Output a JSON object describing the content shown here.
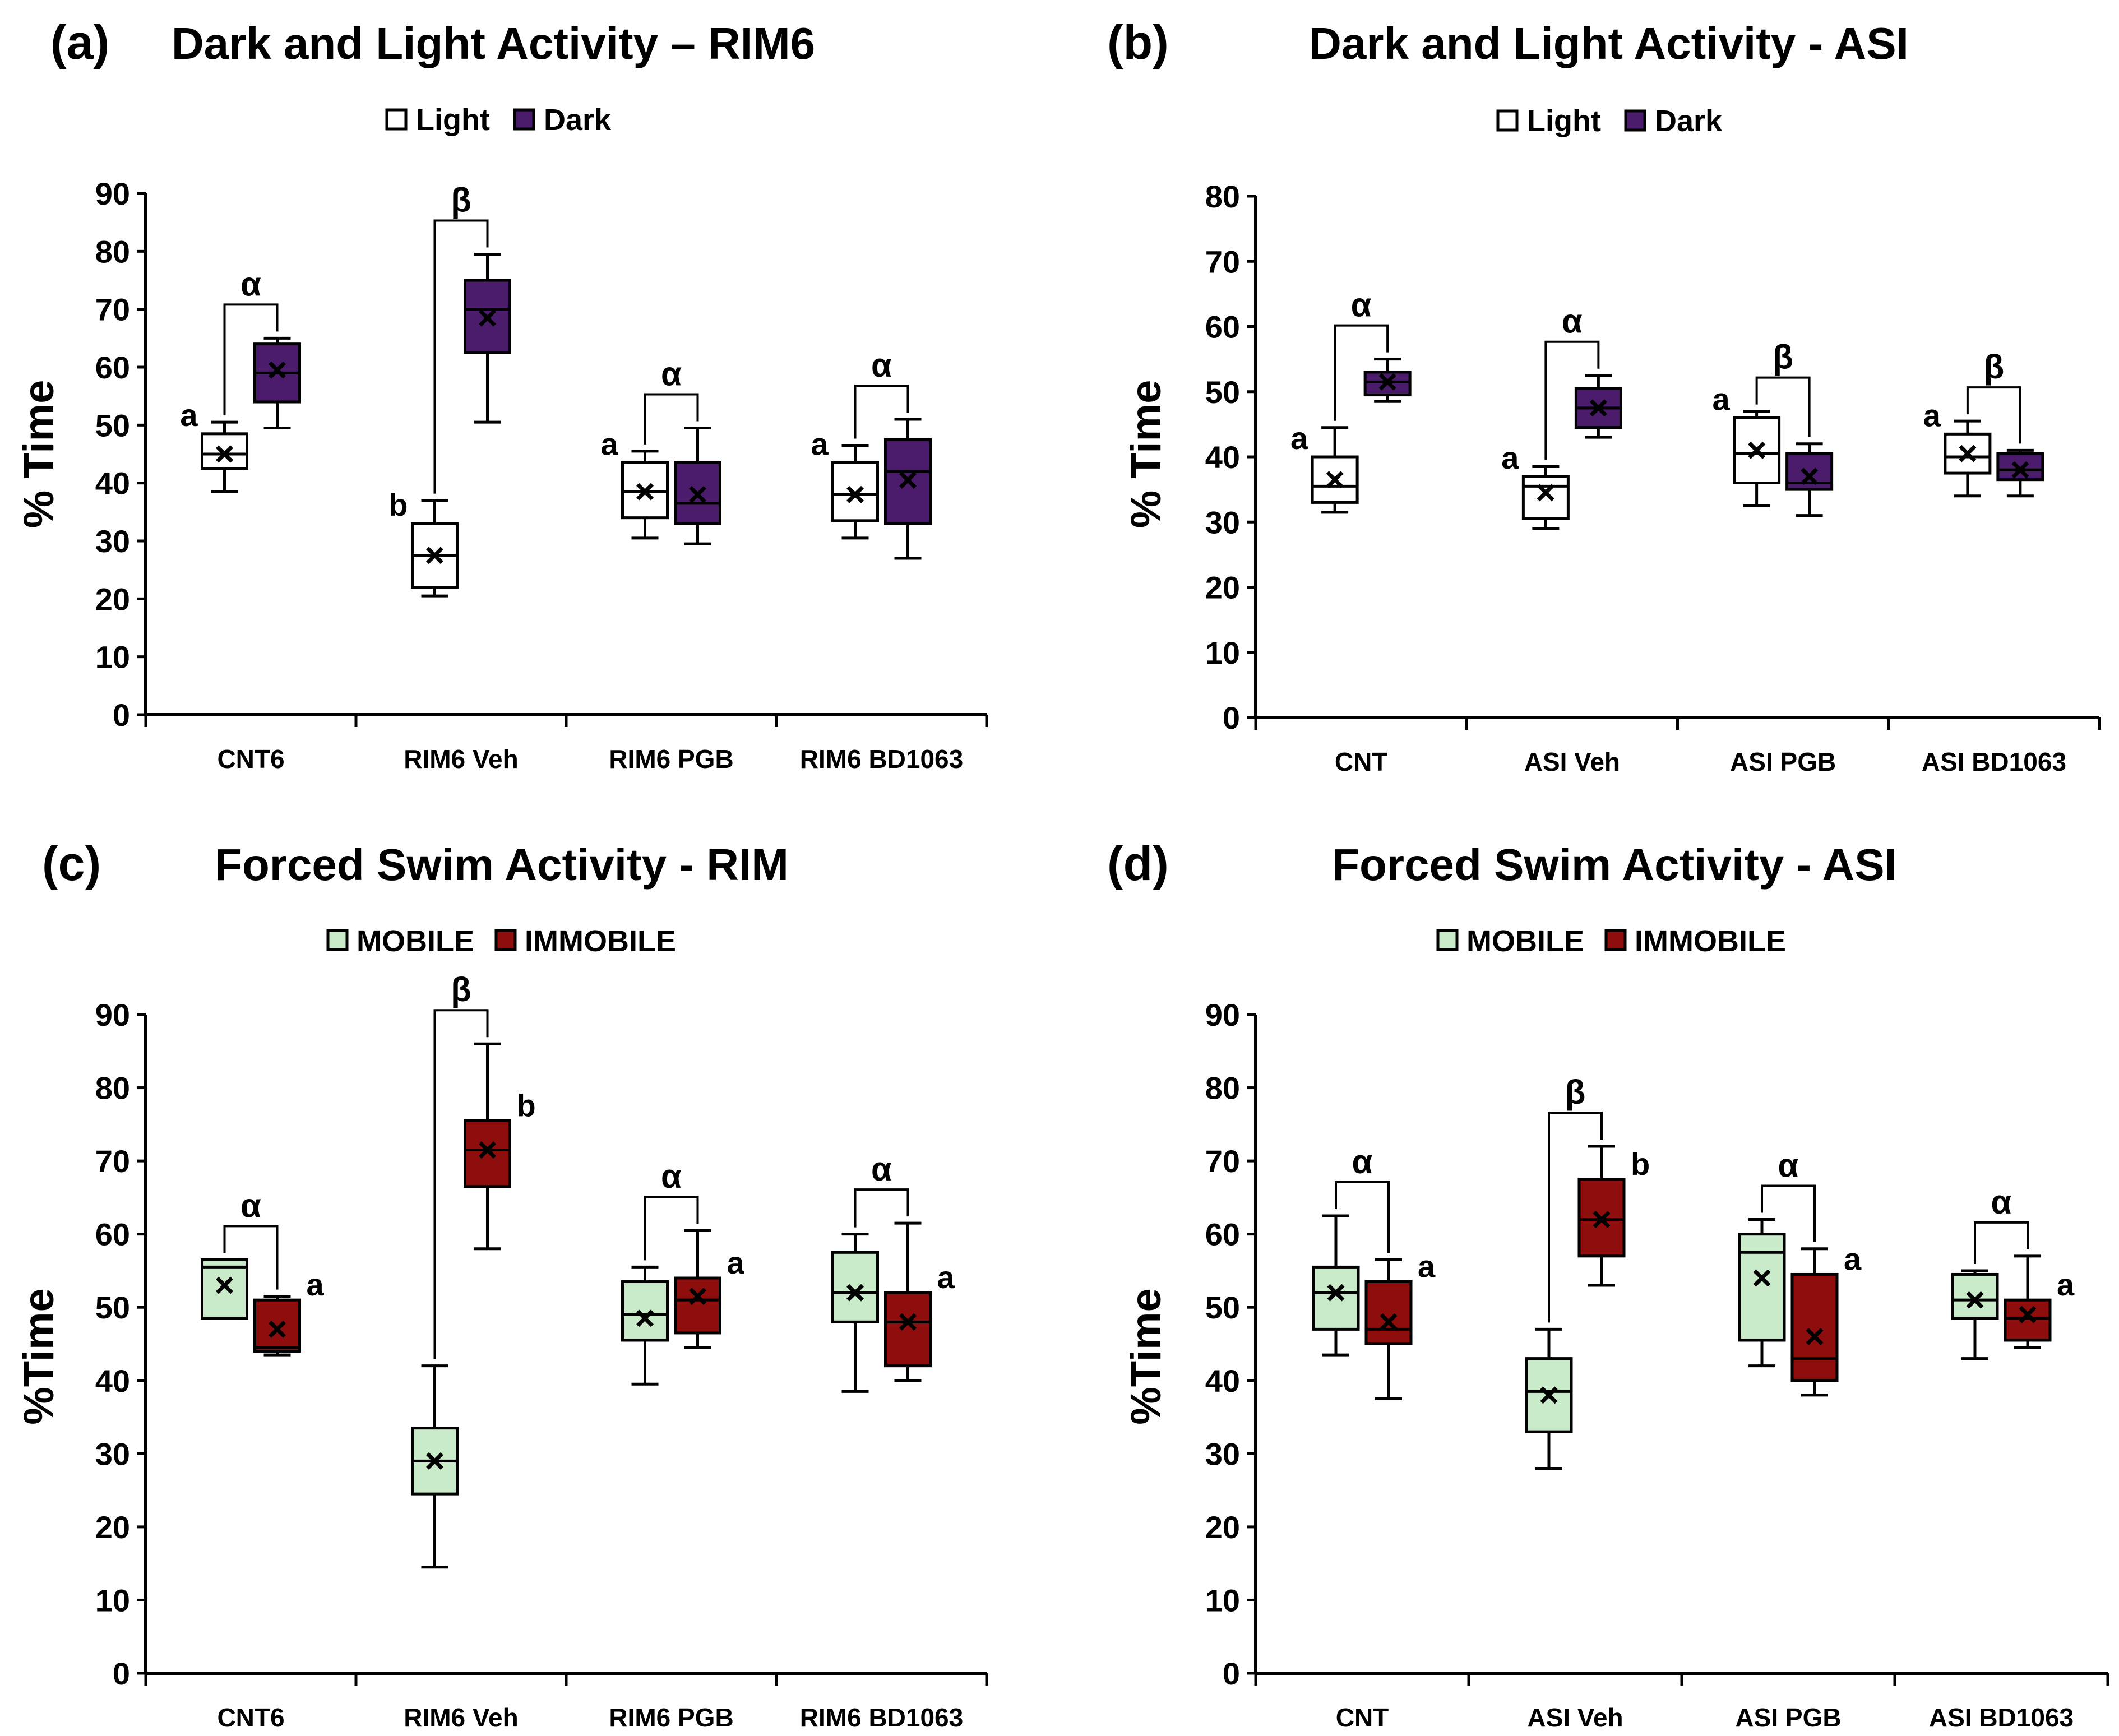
{
  "figure": {
    "panels": [
      {
        "label": "(a)",
        "title": "Dark and Light Activity – RIM6"
      },
      {
        "label": "(b)",
        "title": "Dark and Light Activity - ASI"
      },
      {
        "label": "(c)",
        "title": "Forced Swim Activity - RIM"
      },
      {
        "label": "(d)",
        "title": "Forced Swim Activity - ASI"
      }
    ]
  },
  "colors": {
    "light_fill": "#ffffff",
    "dark_fill": "#4b1c6b",
    "mobile_fill": "#c9ebc9",
    "immobile_fill": "#8e0e0e",
    "stroke": "#000000"
  },
  "chart_data": [
    {
      "type": "box",
      "label": "(a)",
      "title": "Dark and Light Activity – RIM6",
      "ylabel": "% Time",
      "ylim": [
        0,
        90
      ],
      "yticks": [
        0,
        10,
        20,
        30,
        40,
        50,
        60,
        70,
        80,
        90
      ],
      "legend": [
        "Light",
        "Dark"
      ],
      "legend_position": "top-center",
      "categories": [
        "CNT6",
        "RIM6 Veh",
        "RIM6 PGB",
        "RIM6 BD1063"
      ],
      "series": [
        {
          "name": "Light",
          "fill": "#ffffff",
          "boxes": [
            {
              "min": 38.5,
              "q1": 42.5,
              "median": 45.0,
              "q3": 48.5,
              "max": 50.5,
              "mean": 45.0
            },
            {
              "min": 20.5,
              "q1": 22.0,
              "median": 27.5,
              "q3": 33.0,
              "max": 37.0,
              "mean": 27.5
            },
            {
              "min": 30.5,
              "q1": 34.0,
              "median": 38.5,
              "q3": 43.5,
              "max": 45.5,
              "mean": 38.5
            },
            {
              "min": 30.5,
              "q1": 33.5,
              "median": 38.0,
              "q3": 43.5,
              "max": 46.5,
              "mean": 38.0
            }
          ]
        },
        {
          "name": "Dark",
          "fill": "#4b1c6b",
          "boxes": [
            {
              "min": 49.5,
              "q1": 54.0,
              "median": 59.0,
              "q3": 64.0,
              "max": 65.0,
              "mean": 59.5
            },
            {
              "min": 50.5,
              "q1": 62.5,
              "median": 70.0,
              "q3": 75.0,
              "max": 79.5,
              "mean": 68.5
            },
            {
              "min": 29.5,
              "q1": 33.0,
              "median": 36.5,
              "q3": 43.5,
              "max": 49.5,
              "mean": 38.0
            },
            {
              "min": 27.0,
              "q1": 33.0,
              "median": 42.0,
              "q3": 47.5,
              "max": 51.0,
              "mean": 40.5
            }
          ]
        }
      ],
      "letters": [
        "a",
        "b",
        "a",
        "a"
      ],
      "brackets": [
        "α",
        "β",
        "α",
        "α"
      ]
    },
    {
      "type": "box",
      "label": "(b)",
      "title": "Dark and Light Activity - ASI",
      "ylabel": "% Time",
      "ylim": [
        0,
        80
      ],
      "yticks": [
        0,
        10,
        20,
        30,
        40,
        50,
        60,
        70,
        80
      ],
      "legend": [
        "Light",
        "Dark"
      ],
      "legend_position": "top-center",
      "categories": [
        "CNT",
        "ASI Veh",
        "ASI PGB",
        "ASI BD1063"
      ],
      "series": [
        {
          "name": "Light",
          "fill": "#ffffff",
          "boxes": [
            {
              "min": 31.5,
              "q1": 33.0,
              "median": 35.5,
              "q3": 40.0,
              "max": 44.5,
              "mean": 36.5
            },
            {
              "min": 29.0,
              "q1": 30.5,
              "median": 35.5,
              "q3": 37.0,
              "max": 38.5,
              "mean": 34.5
            },
            {
              "min": 32.5,
              "q1": 36.0,
              "median": 40.5,
              "q3": 46.0,
              "max": 47.0,
              "mean": 41.0
            },
            {
              "min": 34.0,
              "q1": 37.5,
              "median": 40.0,
              "q3": 43.5,
              "max": 45.5,
              "mean": 40.5
            }
          ]
        },
        {
          "name": "Dark",
          "fill": "#4b1c6b",
          "boxes": [
            {
              "min": 48.5,
              "q1": 49.5,
              "median": 51.5,
              "q3": 53.0,
              "max": 55.0,
              "mean": 51.5
            },
            {
              "min": 43.0,
              "q1": 44.5,
              "median": 47.5,
              "q3": 50.5,
              "max": 52.5,
              "mean": 47.5
            },
            {
              "min": 31.0,
              "q1": 35.0,
              "median": 36.0,
              "q3": 40.5,
              "max": 42.0,
              "mean": 37.0
            },
            {
              "min": 34.0,
              "q1": 36.5,
              "median": 38.0,
              "q3": 40.5,
              "max": 41.0,
              "mean": 38.0
            }
          ]
        }
      ],
      "letters": [
        "a",
        "a",
        "a",
        "a"
      ],
      "brackets": [
        "α",
        "α",
        "β",
        "β"
      ]
    },
    {
      "type": "box",
      "label": "(c)",
      "title": "Forced Swim Activity - RIM",
      "ylabel": "%Time",
      "ylim": [
        0,
        90
      ],
      "yticks": [
        0,
        10,
        20,
        30,
        40,
        50,
        60,
        70,
        80,
        90
      ],
      "legend": [
        "MOBILE",
        "IMMOBILE"
      ],
      "legend_position": "top-center",
      "categories": [
        "CNT6",
        "RIM6 Veh",
        "RIM6 PGB",
        "RIM6 BD1063"
      ],
      "series": [
        {
          "name": "MOBILE",
          "fill": "#c9ebc9",
          "boxes": [
            {
              "min": 48.5,
              "q1": 48.5,
              "median": 55.5,
              "q3": 56.5,
              "max": 56.5,
              "mean": 53.0
            },
            {
              "min": 14.5,
              "q1": 24.5,
              "median": 29.0,
              "q3": 33.5,
              "max": 42.0,
              "mean": 29.0
            },
            {
              "min": 39.5,
              "q1": 45.5,
              "median": 49.0,
              "q3": 53.5,
              "max": 55.5,
              "mean": 48.5
            },
            {
              "min": 38.5,
              "q1": 48.0,
              "median": 52.0,
              "q3": 57.5,
              "max": 60.0,
              "mean": 52.0
            }
          ]
        },
        {
          "name": "IMMOBILE",
          "fill": "#8e0e0e",
          "boxes": [
            {
              "min": 43.5,
              "q1": 44.0,
              "median": 44.5,
              "q3": 51.0,
              "max": 51.5,
              "mean": 47.0
            },
            {
              "min": 58.0,
              "q1": 66.5,
              "median": 71.5,
              "q3": 75.5,
              "max": 86.0,
              "mean": 71.5
            },
            {
              "min": 44.5,
              "q1": 46.5,
              "median": 51.0,
              "q3": 54.0,
              "max": 60.5,
              "mean": 51.5
            },
            {
              "min": 40.0,
              "q1": 42.0,
              "median": 48.0,
              "q3": 52.0,
              "max": 61.5,
              "mean": 48.0
            }
          ]
        }
      ],
      "letters": [
        "a",
        "b",
        "a",
        "a"
      ],
      "brackets": [
        "α",
        "β",
        "α",
        "α"
      ]
    },
    {
      "type": "box",
      "label": "(d)",
      "title": "Forced Swim Activity - ASI",
      "ylabel": "%Time",
      "ylim": [
        0,
        90
      ],
      "yticks": [
        0,
        10,
        20,
        30,
        40,
        50,
        60,
        70,
        80,
        90
      ],
      "legend": [
        "MOBILE",
        "IMMOBILE"
      ],
      "legend_position": "top-center",
      "categories": [
        "CNT",
        "ASI Veh",
        "ASI PGB",
        "ASI BD1063"
      ],
      "series": [
        {
          "name": "MOBILE",
          "fill": "#c9ebc9",
          "boxes": [
            {
              "min": 43.5,
              "q1": 47.0,
              "median": 52.0,
              "q3": 55.5,
              "max": 62.5,
              "mean": 52.0
            },
            {
              "min": 28.0,
              "q1": 33.0,
              "median": 38.5,
              "q3": 43.0,
              "max": 47.0,
              "mean": 38.0
            },
            {
              "min": 42.0,
              "q1": 45.5,
              "median": 57.5,
              "q3": 60.0,
              "max": 62.0,
              "mean": 54.0
            },
            {
              "min": 43.0,
              "q1": 48.5,
              "median": 51.0,
              "q3": 54.5,
              "max": 55.0,
              "mean": 51.0
            }
          ]
        },
        {
          "name": "IMMOBILE",
          "fill": "#8e0e0e",
          "boxes": [
            {
              "min": 37.5,
              "q1": 45.0,
              "median": 47.0,
              "q3": 53.5,
              "max": 56.5,
              "mean": 48.0
            },
            {
              "min": 53.0,
              "q1": 57.0,
              "median": 62.0,
              "q3": 67.5,
              "max": 72.0,
              "mean": 62.0
            },
            {
              "min": 38.0,
              "q1": 40.0,
              "median": 43.0,
              "q3": 54.5,
              "max": 58.0,
              "mean": 46.0
            },
            {
              "min": 44.5,
              "q1": 45.5,
              "median": 48.5,
              "q3": 51.0,
              "max": 57.0,
              "mean": 49.0
            }
          ]
        }
      ],
      "letters": [
        "a",
        "b",
        "a",
        "a"
      ],
      "brackets": [
        "α",
        "β",
        "α",
        "α"
      ]
    }
  ]
}
